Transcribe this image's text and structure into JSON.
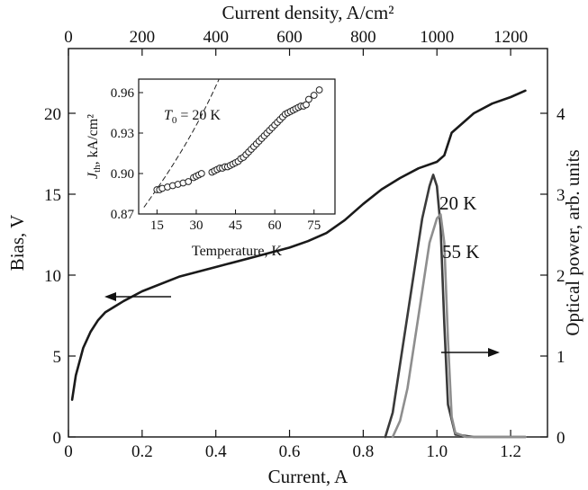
{
  "chart_data": [
    {
      "type": "line",
      "xlabel": "Current, A",
      "x2label": "Current density, A/cm²",
      "ylabel": "Bias, V",
      "y2label": "Optical power, arb. units",
      "xlim": [
        0,
        1.3
      ],
      "ylim": [
        0,
        24
      ],
      "x2lim": [
        0,
        1300
      ],
      "y2lim": [
        0,
        4.8
      ],
      "x_ticks": [
        "0",
        "0.2",
        "0.4",
        "0.6",
        "0.8",
        "1.0",
        "1.2"
      ],
      "x2_ticks": [
        "0",
        "200",
        "400",
        "600",
        "800",
        "1000",
        "1200"
      ],
      "y_ticks": [
        "0",
        "5",
        "10",
        "15",
        "20"
      ],
      "y2_ticks": [
        "0",
        "1",
        "2",
        "3",
        "4"
      ],
      "series": [
        {
          "name": "Bias",
          "axis": "left",
          "color": "#1a1a1a",
          "x": [
            0.01,
            0.02,
            0.04,
            0.06,
            0.08,
            0.1,
            0.15,
            0.2,
            0.3,
            0.4,
            0.5,
            0.6,
            0.65,
            0.7,
            0.75,
            0.8,
            0.85,
            0.9,
            0.95,
            1.0,
            1.02,
            1.04,
            1.1,
            1.15,
            1.2,
            1.24
          ],
          "y": [
            2.3,
            3.8,
            5.5,
            6.5,
            7.2,
            7.7,
            8.4,
            9.0,
            9.9,
            10.5,
            11.1,
            11.7,
            12.1,
            12.6,
            13.4,
            14.4,
            15.3,
            16.0,
            16.6,
            17.0,
            17.4,
            18.8,
            20.0,
            20.6,
            21.0,
            21.4
          ]
        },
        {
          "name": "20 K",
          "axis": "right",
          "color": "#3a3a3a",
          "x": [
            0.86,
            0.88,
            0.9,
            0.93,
            0.96,
            0.98,
            0.99,
            1.0,
            1.01,
            1.02,
            1.03,
            1.05,
            1.1,
            1.24
          ],
          "y": [
            0.0,
            0.3,
            0.9,
            1.8,
            2.7,
            3.1,
            3.24,
            3.1,
            2.6,
            1.4,
            0.4,
            0.03,
            0.0,
            0.0
          ]
        },
        {
          "name": "55 K",
          "axis": "right",
          "color": "#8e8e8e",
          "x": [
            0.88,
            0.9,
            0.92,
            0.95,
            0.98,
            1.0,
            1.01,
            1.02,
            1.03,
            1.04,
            1.05,
            1.08,
            1.24
          ],
          "y": [
            0.0,
            0.2,
            0.6,
            1.5,
            2.4,
            2.7,
            2.75,
            2.4,
            1.2,
            0.25,
            0.05,
            0.0,
            0.0
          ]
        }
      ],
      "labels": [
        "20 K",
        "55 K"
      ]
    },
    {
      "type": "scatter",
      "xlabel": "Temperature, K",
      "ylabel_main": "J",
      "ylabel_sub": "th",
      "ylabel_rest": ", kA/cm²",
      "annotation_main": "T",
      "annotation_sub": "0",
      "annotation_rest": " = 20 K",
      "xlim": [
        8,
        83
      ],
      "ylim": [
        0.87,
        0.97
      ],
      "x_ticks": [
        "15",
        "30",
        "45",
        "60",
        "75"
      ],
      "y_ticks": [
        "0.87",
        "0.90",
        "0.93",
        "0.96"
      ],
      "points": {
        "x": [
          15,
          16,
          17,
          19,
          21,
          23,
          25,
          27,
          29,
          30,
          31,
          32,
          36,
          37,
          38,
          39,
          40,
          41,
          42,
          43,
          44,
          45,
          46,
          47,
          48,
          49,
          50,
          51,
          52,
          53,
          54,
          55,
          56,
          57,
          58,
          59,
          60,
          61,
          62,
          63,
          64,
          65,
          66,
          67,
          68,
          69,
          70,
          71,
          72,
          73,
          75,
          77
        ],
        "y": [
          0.888,
          0.888,
          0.889,
          0.89,
          0.891,
          0.892,
          0.893,
          0.894,
          0.897,
          0.898,
          0.899,
          0.9,
          0.901,
          0.902,
          0.903,
          0.904,
          0.904,
          0.905,
          0.905,
          0.906,
          0.907,
          0.908,
          0.909,
          0.911,
          0.912,
          0.914,
          0.916,
          0.918,
          0.92,
          0.922,
          0.924,
          0.926,
          0.928,
          0.93,
          0.932,
          0.934,
          0.936,
          0.938,
          0.94,
          0.942,
          0.944,
          0.945,
          0.946,
          0.947,
          0.948,
          0.949,
          0.95,
          0.95,
          0.951,
          0.955,
          0.958,
          0.962
        ]
      },
      "fit_T0": 20
    }
  ]
}
